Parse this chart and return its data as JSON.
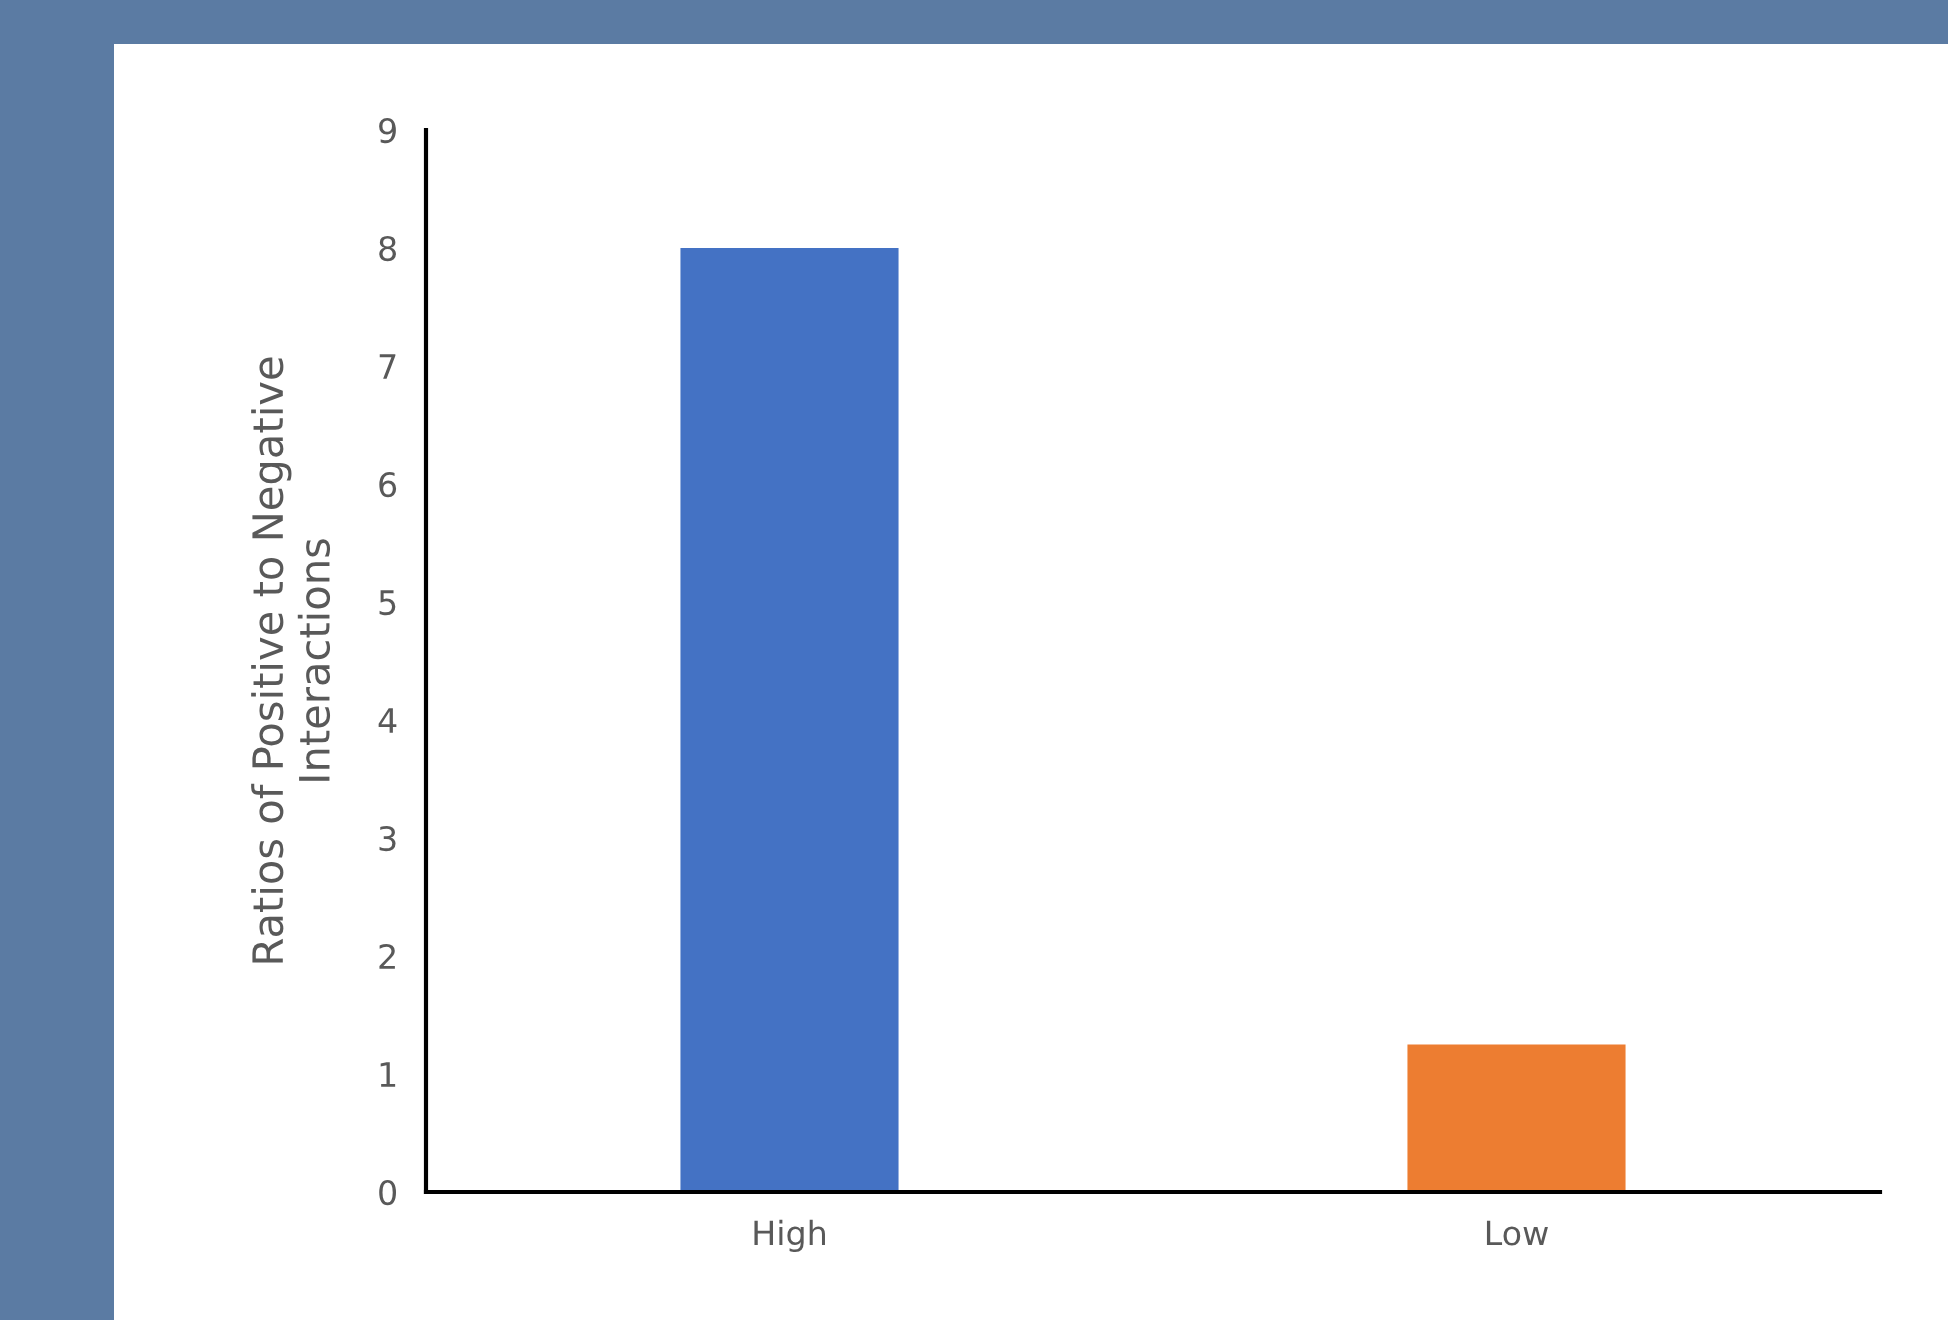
{
  "chart_data": {
    "type": "bar",
    "ylabel": "Ratios of Positive to Negative\nInteractions",
    "categories": [
      "High",
      "Low"
    ],
    "values": [
      8.0,
      1.25
    ],
    "colors": [
      "#4472c4",
      "#ed7d31"
    ],
    "ylim": [
      0,
      9
    ],
    "yticks": [
      0,
      1,
      2,
      3,
      4,
      5,
      6,
      7,
      8,
      9
    ],
    "grid": false
  }
}
